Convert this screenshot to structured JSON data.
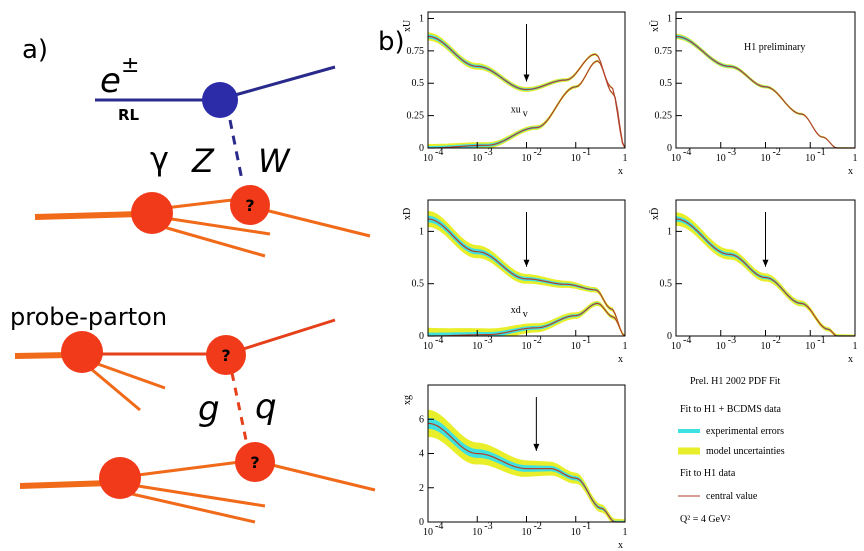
{
  "panel_a": {
    "label": "a)",
    "lepton": "e",
    "charge": "±",
    "helicity": "RL",
    "bosons": [
      "γ",
      "Z",
      "W"
    ],
    "probe": "probe-parton",
    "gluon": "g",
    "quark": "q",
    "unknown": "?"
  },
  "panel_b": {
    "label": "b)",
    "xlabel": "x",
    "xticks": [
      {
        "base": "10",
        "exp": "-4"
      },
      {
        "base": "10",
        "exp": "-3"
      },
      {
        "base": "10",
        "exp": "-2"
      },
      {
        "base": "10",
        "exp": "-1"
      },
      {
        "base": "1"
      }
    ],
    "plots": [
      {
        "ylabel": "xU",
        "ylim": [
          0,
          1.05
        ],
        "yticks": [
          0,
          0.25,
          0.5,
          0.75,
          1
        ],
        "curve_label": {
          "text": "xu",
          "sub": "v"
        }
      },
      {
        "ylabel": "xŪ",
        "ylim": [
          0,
          1.05
        ],
        "yticks": [
          0,
          0.25,
          0.5,
          0.75,
          1
        ],
        "annotation": "H1 preliminary"
      },
      {
        "ylabel": "xD",
        "ylim": [
          0,
          1.3
        ],
        "yticks": [
          0,
          0.5,
          1
        ],
        "curve_label": {
          "text": "xd",
          "sub": "v"
        }
      },
      {
        "ylabel": "xD̄",
        "ylim": [
          0,
          1.3
        ],
        "yticks": [
          0,
          0.5,
          1
        ]
      },
      {
        "ylabel": "xg",
        "ylim": [
          0,
          8
        ],
        "yticks": [
          0,
          2,
          4,
          6
        ]
      }
    ],
    "legend": {
      "title": "Prel. H1 2002 PDF Fit",
      "group1": "Fit to H1 + BCDMS data",
      "experimental": "experimental errors",
      "model": "model uncertainties",
      "group2": "Fit to H1 data",
      "central": "central value",
      "scale": "Q² = 4 GeV²"
    }
  }
}
